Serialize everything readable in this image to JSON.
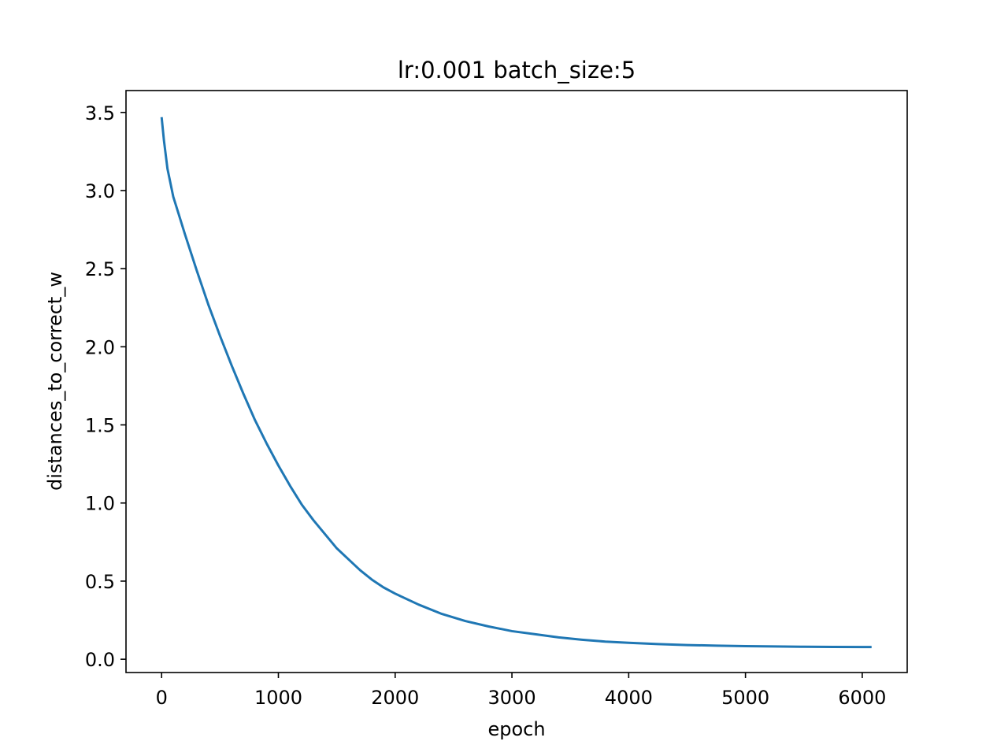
{
  "chart_data": {
    "type": "line",
    "title": "lr:0.001 batch_size:5",
    "xlabel": "epoch",
    "ylabel": "distances_to_correct_w",
    "xlim": [
      -305,
      6385
    ],
    "ylim": [
      -0.085,
      3.64
    ],
    "xticks": [
      0,
      1000,
      2000,
      3000,
      4000,
      5000,
      6000
    ],
    "xtick_labels": [
      "0",
      "1000",
      "2000",
      "3000",
      "4000",
      "5000",
      "6000"
    ],
    "yticks": [
      0.0,
      0.5,
      1.0,
      1.5,
      2.0,
      2.5,
      3.0,
      3.5
    ],
    "ytick_labels": [
      "0.0",
      "0.5",
      "1.0",
      "1.5",
      "2.0",
      "2.5",
      "3.0",
      "3.5"
    ],
    "grid": false,
    "series": [
      {
        "color": "#1f77b4",
        "x": [
          0,
          20,
          50,
          100,
          150,
          200,
          300,
          400,
          500,
          600,
          700,
          800,
          900,
          1000,
          1100,
          1200,
          1300,
          1400,
          1500,
          1600,
          1700,
          1800,
          1900,
          2000,
          2200,
          2400,
          2600,
          2800,
          3000,
          3200,
          3400,
          3600,
          3800,
          4000,
          4250,
          4500,
          4750,
          5000,
          5250,
          5500,
          5750,
          6000,
          6080
        ],
        "y": [
          3.47,
          3.32,
          3.14,
          2.96,
          2.84,
          2.72,
          2.49,
          2.27,
          2.07,
          1.88,
          1.7,
          1.53,
          1.38,
          1.24,
          1.11,
          0.99,
          0.89,
          0.8,
          0.71,
          0.64,
          0.57,
          0.51,
          0.46,
          0.42,
          0.35,
          0.29,
          0.245,
          0.21,
          0.18,
          0.16,
          0.14,
          0.125,
          0.113,
          0.105,
          0.097,
          0.091,
          0.087,
          0.084,
          0.082,
          0.08,
          0.079,
          0.078,
          0.078
        ]
      }
    ]
  }
}
